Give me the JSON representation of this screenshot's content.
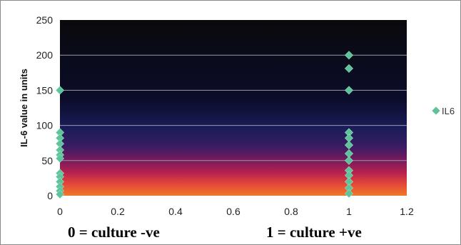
{
  "chart_data": {
    "type": "scatter",
    "ylabel": "IL-6 value in units",
    "xlim": [
      0,
      1.2
    ],
    "ylim": [
      0,
      250
    ],
    "x_ticks": [
      "0",
      "0.2",
      "0.4",
      "0.6",
      "0.8",
      "1",
      "1.2"
    ],
    "y_ticks": [
      "0",
      "50",
      "100",
      "150",
      "200",
      "250"
    ],
    "legend_position": "right",
    "grid": "horizontal",
    "marker_color": "#5ec39a",
    "series": [
      {
        "name": "IL6",
        "points": [
          [
            0,
            150
          ],
          [
            0,
            90
          ],
          [
            0,
            82
          ],
          [
            0,
            74
          ],
          [
            0,
            65
          ],
          [
            0,
            58
          ],
          [
            0,
            53
          ],
          [
            0,
            32
          ],
          [
            0,
            27
          ],
          [
            0,
            20
          ],
          [
            0,
            13
          ],
          [
            0,
            7
          ],
          [
            0,
            2
          ],
          [
            1,
            200
          ],
          [
            1,
            181
          ],
          [
            1,
            150
          ],
          [
            1,
            90
          ],
          [
            1,
            82
          ],
          [
            1,
            72
          ],
          [
            1,
            60
          ],
          [
            1,
            50
          ],
          [
            1,
            36
          ],
          [
            1,
            29
          ],
          [
            1,
            20
          ],
          [
            1,
            11
          ],
          [
            1,
            3
          ]
        ]
      }
    ]
  },
  "captions": {
    "left": "0 = culture -ve",
    "right": "1 = culture +ve"
  }
}
